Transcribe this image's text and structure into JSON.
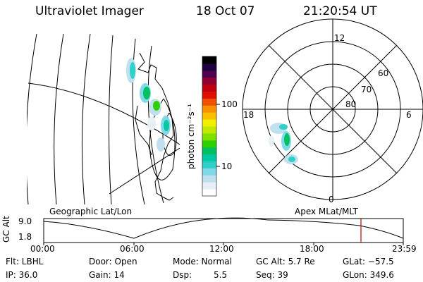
{
  "header": {
    "instrument": "Ultraviolet Imager",
    "date": "18 Oct 07",
    "time": "21:20:54 UT"
  },
  "colorbar": {
    "unit_label": "photon cm⁻²s⁻¹",
    "tick_100": "100",
    "tick_10": "10",
    "colors": [
      "#ffffff",
      "#e6f0f5",
      "#c0e0f0",
      "#80d8e8",
      "#30d0c8",
      "#00c8a0",
      "#00c060",
      "#30d000",
      "#80e000",
      "#c0e800",
      "#f0f000",
      "#f8c000",
      "#f89000",
      "#f05000",
      "#e01000",
      "#c00010",
      "#900030",
      "#500050",
      "#200040",
      "#000000"
    ]
  },
  "left_map": {
    "label": "Geographic Lat/Lon"
  },
  "polar_plot": {
    "label": "Apex  MLat/MLT",
    "mlt_12": "12",
    "mlt_18": "18",
    "mlt_6": "6",
    "mlt_0": "0",
    "lat_60": "60",
    "lat_70": "70",
    "lat_80": "80"
  },
  "altitude_plot": {
    "ylabel": "GC Alt",
    "y_ticks": [
      "9.0",
      "1.8"
    ],
    "x_ticks": [
      "00:00",
      "06:00",
      "12:00",
      "18:00",
      "23:59"
    ],
    "current_marker_color": "#c00000"
  },
  "footer": {
    "filter": "Flt: LBHL",
    "ip": "IP: 36.0",
    "door": "Door: Open",
    "gain": "Gain: 14",
    "mode": "Mode: Normal",
    "dsp_label": "Dsp:",
    "dsp_value": "5.5",
    "gc_alt": "GC Alt: 5.7 Re",
    "seq": "Seq: 39",
    "glat": "GLat: −57.5",
    "glon": "GLon: 349.6"
  }
}
